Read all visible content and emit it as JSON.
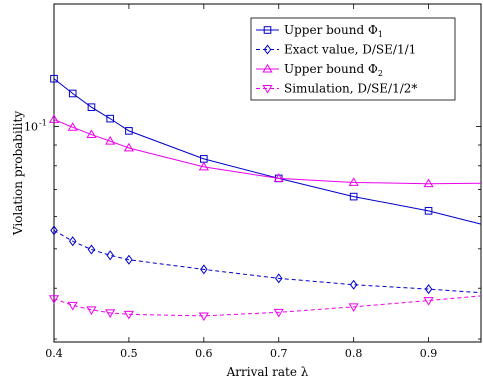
{
  "chart_data": {
    "type": "line",
    "title": "",
    "xlabel": "Arrival rate λ",
    "ylabel": "Violation probability",
    "xlim": [
      0.4,
      0.97
    ],
    "ylim": [
      0.0295,
      0.2
    ],
    "yscale": "log",
    "grid": false,
    "legend_position": "top-right",
    "x_ticks": [
      {
        "value": 0.4,
        "label": "0.4"
      },
      {
        "value": 0.5,
        "label": "0.5"
      },
      {
        "value": 0.6,
        "label": "0.6"
      },
      {
        "value": 0.7,
        "label": "0.7"
      },
      {
        "value": 0.8,
        "label": "0.8"
      },
      {
        "value": 0.9,
        "label": "0.9"
      }
    ],
    "y_ticks": [
      {
        "value": 0.1,
        "label": "10",
        "exp": "-1"
      }
    ],
    "series": [
      {
        "name": "Upper bound Φ",
        "name_sub": "1",
        "color": "#0000cc",
        "dash": "solid",
        "marker": "square",
        "x": [
          0.4,
          0.425,
          0.45,
          0.475,
          0.5,
          0.6,
          0.7,
          0.8,
          0.9,
          0.97
        ],
        "y": [
          0.131,
          0.1205,
          0.1115,
          0.1045,
          0.0975,
          0.0832,
          0.0745,
          0.0672,
          0.062,
          0.0575
        ],
        "marker_x": [
          0.4,
          0.425,
          0.45,
          0.475,
          0.5,
          0.6,
          0.7,
          0.8,
          0.9
        ]
      },
      {
        "name": "Exact value, D/SE/1/1",
        "name_sub": "",
        "color": "#0000cc",
        "dash": "dashed",
        "marker": "diamond",
        "x": [
          0.4,
          0.425,
          0.45,
          0.475,
          0.5,
          0.6,
          0.7,
          0.8,
          0.9,
          0.97
        ],
        "y": [
          0.0555,
          0.0522,
          0.0498,
          0.0482,
          0.047,
          0.0445,
          0.0423,
          0.0408,
          0.0398,
          0.039
        ],
        "marker_x": [
          0.4,
          0.425,
          0.45,
          0.475,
          0.5,
          0.6,
          0.7,
          0.8,
          0.9
        ]
      },
      {
        "name": "Upper bound Φ",
        "name_sub": "2",
        "color": "#ee00ee",
        "dash": "solid",
        "marker": "triangle-up",
        "x": [
          0.4,
          0.425,
          0.45,
          0.475,
          0.5,
          0.6,
          0.7,
          0.8,
          0.9,
          0.97
        ],
        "y": [
          0.104,
          0.0995,
          0.0955,
          0.092,
          0.0885,
          0.0795,
          0.0745,
          0.0728,
          0.0723,
          0.0725
        ],
        "marker_x": [
          0.4,
          0.425,
          0.45,
          0.475,
          0.5,
          0.6,
          0.7,
          0.8,
          0.9
        ]
      },
      {
        "name": "Simulation, D/SE/1/2*",
        "name_sub": "",
        "color": "#ee00ee",
        "dash": "dashed",
        "marker": "triangle-down",
        "x": [
          0.4,
          0.425,
          0.45,
          0.475,
          0.5,
          0.6,
          0.7,
          0.8,
          0.9,
          0.97
        ],
        "y": [
          0.0377,
          0.0363,
          0.0354,
          0.0348,
          0.0345,
          0.0342,
          0.0349,
          0.036,
          0.0373,
          0.0383
        ],
        "marker_x": [
          0.4,
          0.425,
          0.45,
          0.475,
          0.5,
          0.6,
          0.7,
          0.8,
          0.9
        ]
      }
    ]
  }
}
